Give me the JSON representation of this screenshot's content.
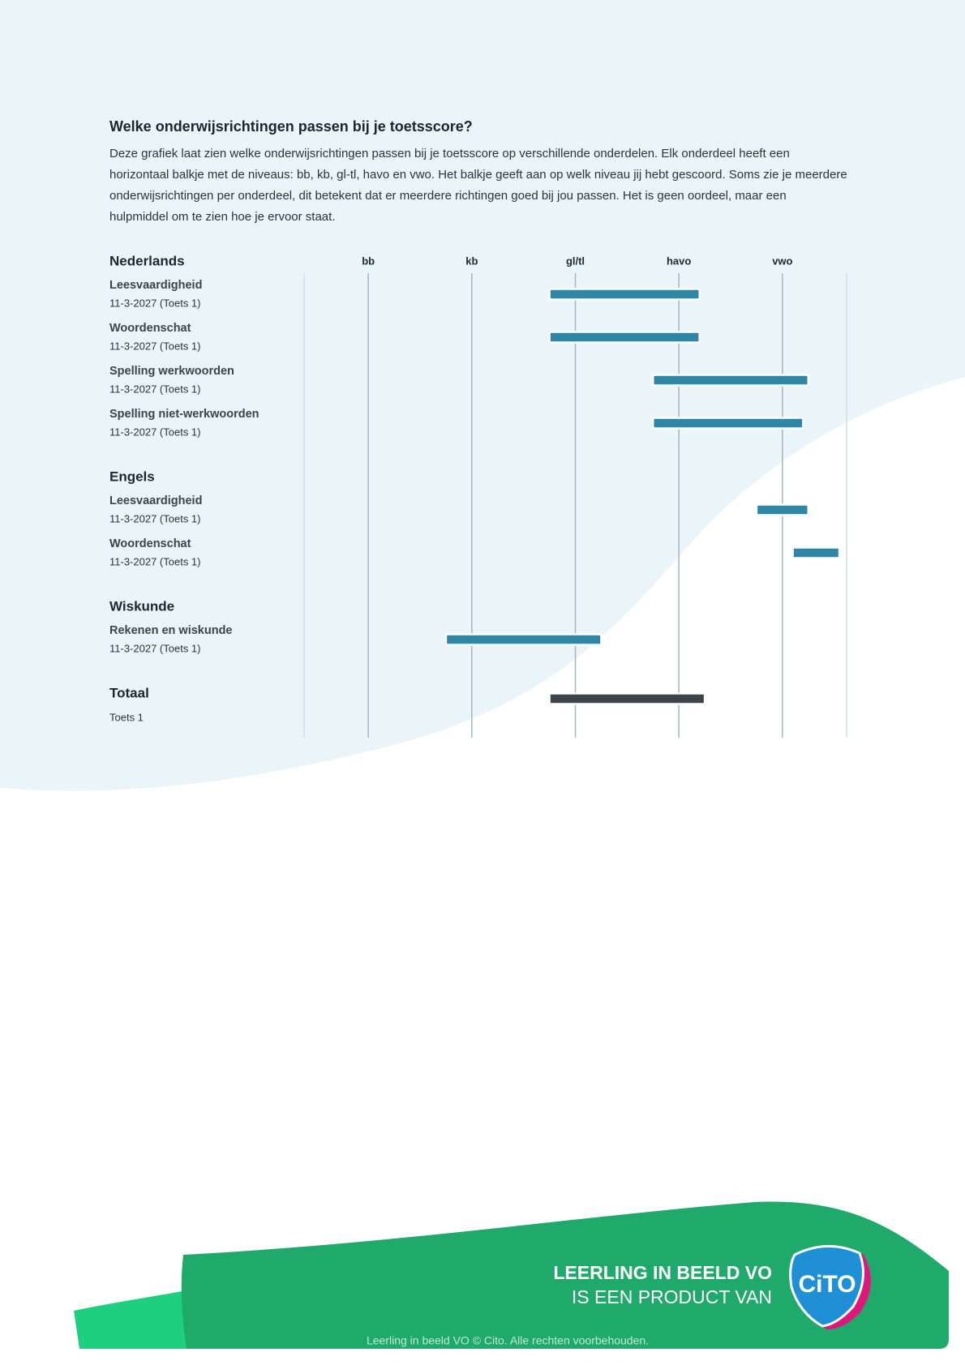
{
  "title": "Welke onderwijsrichtingen passen bij je toetsscore?",
  "intro": "Deze grafiek laat zien welke onderwijsrichtingen passen bij je toetsscore op verschillende onderdelen. Elk onderdeel heeft een horizontaal balkje met de niveaus: bb, kb, gl-tl, havo en vwo. Het balkje geeft aan op welk niveau jij hebt gescoord. Soms zie je meerdere onderwijsrichtingen per onderdeel, dit betekent dat er meerdere richtingen goed bij jou passen. Het is geen oordeel, maar een hulpmiddel om te zien hoe je ervoor staat.",
  "chart_data": {
    "type": "range-bar",
    "xlim": [
      -0.62,
      4.62
    ],
    "xticks": [
      {
        "value": 0,
        "label": "bb"
      },
      {
        "value": 1,
        "label": "kb"
      },
      {
        "value": 2,
        "label": "gl/tl"
      },
      {
        "value": 3,
        "label": "havo"
      },
      {
        "value": 4,
        "label": "vwo"
      }
    ],
    "bar_color": "#2f86a4",
    "total_color": "#3c434b",
    "groups": [
      {
        "name": "Nederlands",
        "items": [
          {
            "label": "Leesvaardigheid",
            "date": "11-3-2027 (Toets 1)",
            "start": 1.75,
            "end": 3.2
          },
          {
            "label": "Woordenschat",
            "date": "11-3-2027 (Toets 1)",
            "start": 1.75,
            "end": 3.2
          },
          {
            "label": "Spelling werkwoorden",
            "date": "11-3-2027 (Toets 1)",
            "start": 2.75,
            "end": 4.25
          },
          {
            "label": "Spelling niet-werkwoorden",
            "date": "11-3-2027 (Toets 1)",
            "start": 2.75,
            "end": 4.2
          }
        ]
      },
      {
        "name": "Engels",
        "items": [
          {
            "label": "Leesvaardigheid",
            "date": "11-3-2027 (Toets 1)",
            "start": 3.75,
            "end": 4.25
          },
          {
            "label": "Woordenschat",
            "date": "11-3-2027 (Toets 1)",
            "start": 4.1,
            "end": 4.55
          }
        ]
      },
      {
        "name": "Wiskunde",
        "items": [
          {
            "label": "Rekenen en wiskunde",
            "date": "11-3-2027 (Toets 1)",
            "start": 0.75,
            "end": 2.25
          }
        ]
      }
    ],
    "total": {
      "name": "Totaal",
      "label": "Toets 1",
      "start": 1.75,
      "end": 3.25
    }
  },
  "footer": {
    "line1": "LEERLING IN BEELD VO",
    "line2": "IS EEN PRODUCT VAN",
    "logo": "CiTO",
    "copyright": "Leerling in beeld VO © Cito. Alle rechten voorbehouden."
  }
}
